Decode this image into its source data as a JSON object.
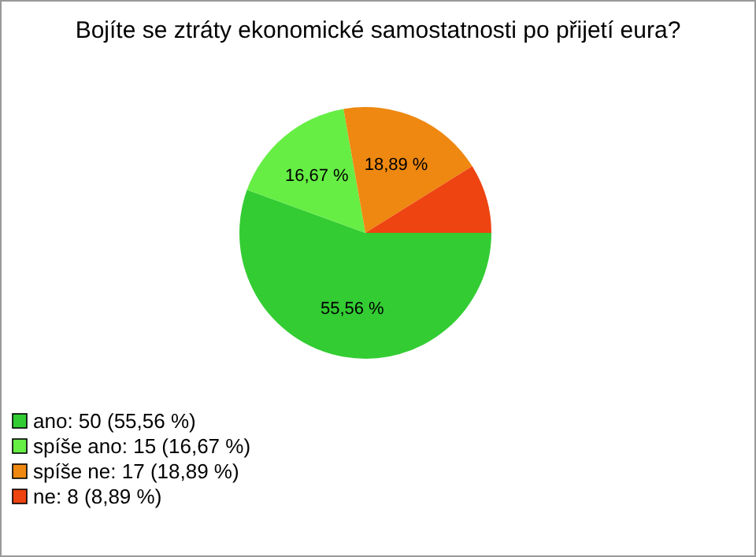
{
  "chart_data": {
    "type": "pie",
    "title": "Bojíte se ztráty ekonomické samostatnosti po přijetí eura?",
    "categories": [
      "ano: 50 (55,56 %)",
      "spíše ano: 15 (16,67 %)",
      "spíše ne: 17 (18,89 %)",
      "ne: 8 (8,89 %)"
    ],
    "values": [
      55.56,
      16.67,
      18.89,
      8.89
    ],
    "colors": [
      "#33cc33",
      "#66ee44",
      "#ee8811",
      "#ee4411"
    ],
    "value_labels": [
      "55,56 %",
      "16,67 %",
      "18,89 %",
      null
    ],
    "legend": "bottom left"
  }
}
